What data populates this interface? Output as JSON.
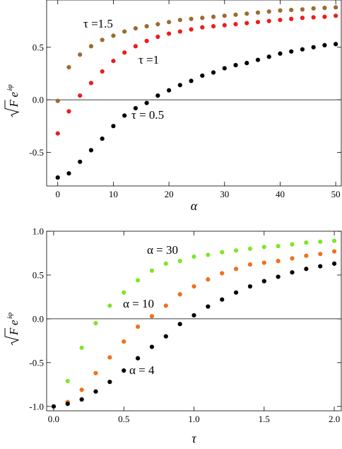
{
  "chart_data": [
    {
      "type": "scatter",
      "title": "",
      "xlabel": "α",
      "ylabel": "√F e^{iφ}",
      "xlim": [
        -2,
        51
      ],
      "ylim": [
        -0.82,
        0.95
      ],
      "grid": false,
      "zero_line": 0,
      "x_ticks": [
        0,
        10,
        20,
        30,
        40,
        50
      ],
      "x_tick_labels": [
        "0",
        "10",
        "20",
        "30",
        "40",
        "50"
      ],
      "y_ticks": [
        -0.5,
        0.0,
        0.5
      ],
      "y_tick_labels": [
        "-0.5",
        "0.0",
        "0.5"
      ],
      "x": [
        0,
        2,
        4,
        6,
        8,
        10,
        12,
        14,
        16,
        18,
        20,
        22,
        24,
        26,
        28,
        30,
        32,
        34,
        36,
        38,
        40,
        42,
        44,
        46,
        48,
        50
      ],
      "series": [
        {
          "name": "τ =1.5",
          "color": "#9c6b2e",
          "values": [
            -0.01,
            0.31,
            0.43,
            0.51,
            0.57,
            0.61,
            0.65,
            0.68,
            0.7,
            0.72,
            0.74,
            0.76,
            0.77,
            0.78,
            0.79,
            0.8,
            0.81,
            0.82,
            0.83,
            0.84,
            0.85,
            0.855,
            0.86,
            0.87,
            0.875,
            0.88
          ]
        },
        {
          "name": "τ =1",
          "color": "#ee1c1c",
          "values": [
            -0.32,
            -0.11,
            0.04,
            0.16,
            0.27,
            0.37,
            0.45,
            0.51,
            0.56,
            0.6,
            0.63,
            0.65,
            0.67,
            0.69,
            0.7,
            0.71,
            0.72,
            0.73,
            0.74,
            0.75,
            0.76,
            0.77,
            0.78,
            0.785,
            0.79,
            0.8
          ]
        },
        {
          "name": "τ = 0.5",
          "color": "#000000",
          "values": [
            -0.74,
            -0.7,
            -0.59,
            -0.48,
            -0.37,
            -0.25,
            -0.15,
            -0.08,
            -0.03,
            0.04,
            0.09,
            0.14,
            0.18,
            0.23,
            0.26,
            0.3,
            0.33,
            0.35,
            0.38,
            0.41,
            0.44,
            0.46,
            0.48,
            0.5,
            0.52,
            0.53
          ]
        }
      ],
      "annotations": [
        "τ =1.5",
        "τ =1",
        "τ = 0.5"
      ]
    },
    {
      "type": "scatter",
      "title": "",
      "xlabel": "τ",
      "ylabel": "√F e^{iφ}",
      "xlim": [
        -0.05,
        2.05
      ],
      "ylim": [
        -1.05,
        1.0
      ],
      "grid": false,
      "zero_line": 0,
      "x_ticks": [
        0.0,
        0.5,
        1.0,
        1.5,
        2.0
      ],
      "x_tick_labels": [
        "0.0",
        "0.5",
        "1.0",
        "1.5",
        "2.0"
      ],
      "y_ticks": [
        -1.0,
        -0.5,
        0.0,
        0.5,
        1.0
      ],
      "y_tick_labels": [
        "-1.0",
        "-0.5",
        "0.0",
        "0.5",
        "1.0"
      ],
      "x": [
        0.0,
        0.1,
        0.2,
        0.3,
        0.4,
        0.5,
        0.6,
        0.7,
        0.8,
        0.9,
        1.0,
        1.1,
        1.2,
        1.3,
        1.4,
        1.5,
        1.6,
        1.7,
        1.8,
        1.9,
        2.0
      ],
      "series": [
        {
          "name": "α = 30",
          "color": "#7ee629",
          "values": [
            -1.0,
            -0.71,
            -0.33,
            -0.05,
            0.15,
            0.3,
            0.44,
            0.55,
            0.63,
            0.66,
            0.71,
            0.73,
            0.76,
            0.78,
            0.8,
            0.82,
            0.83,
            0.85,
            0.87,
            0.88,
            0.89
          ]
        },
        {
          "name": "α = 10",
          "color": "#f26f1c",
          "values": [
            -1.0,
            -0.95,
            -0.81,
            -0.62,
            -0.44,
            -0.26,
            -0.09,
            0.03,
            0.15,
            0.28,
            0.37,
            0.45,
            0.52,
            0.57,
            0.62,
            0.64,
            0.66,
            0.69,
            0.72,
            0.74,
            0.77
          ]
        },
        {
          "name": "α = 4",
          "color": "#000000",
          "values": [
            -1.0,
            -0.97,
            -0.92,
            -0.83,
            -0.72,
            -0.59,
            -0.45,
            -0.32,
            -0.2,
            -0.06,
            0.04,
            0.14,
            0.22,
            0.3,
            0.37,
            0.43,
            0.48,
            0.53,
            0.57,
            0.6,
            0.63
          ]
        }
      ],
      "annotations": [
        "α = 30",
        "α = 10",
        "α = 4"
      ]
    }
  ]
}
